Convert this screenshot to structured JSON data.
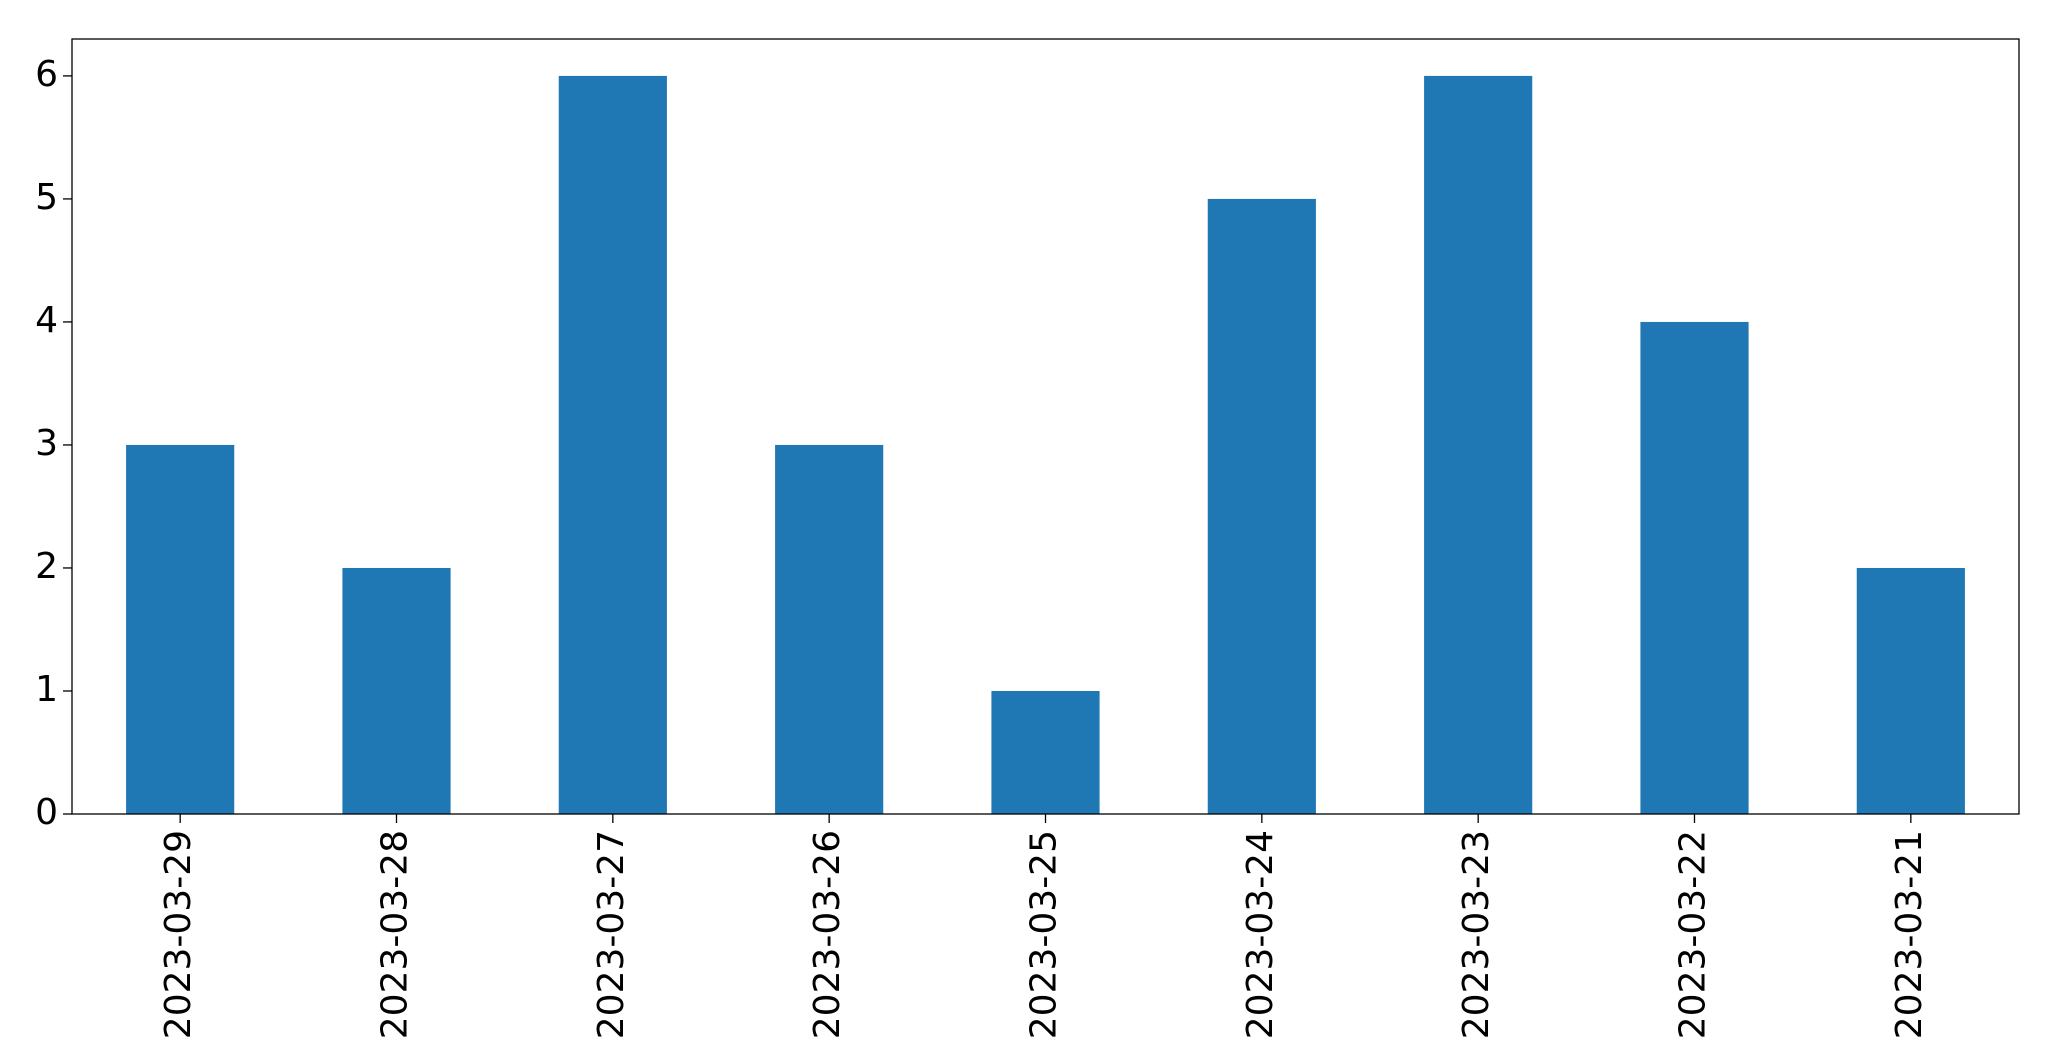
{
  "chart_data": {
    "type": "bar",
    "categories": [
      "2023-03-29",
      "2023-03-28",
      "2023-03-27",
      "2023-03-26",
      "2023-03-25",
      "2023-03-24",
      "2023-03-23",
      "2023-03-22",
      "2023-03-21"
    ],
    "values": [
      3,
      2,
      6,
      3,
      1,
      5,
      6,
      4,
      2
    ],
    "color": "#1f77b4",
    "ylim": [
      0,
      6.3
    ],
    "yticks": [
      0,
      1,
      2,
      3,
      4,
      5,
      6
    ],
    "grid": false
  }
}
